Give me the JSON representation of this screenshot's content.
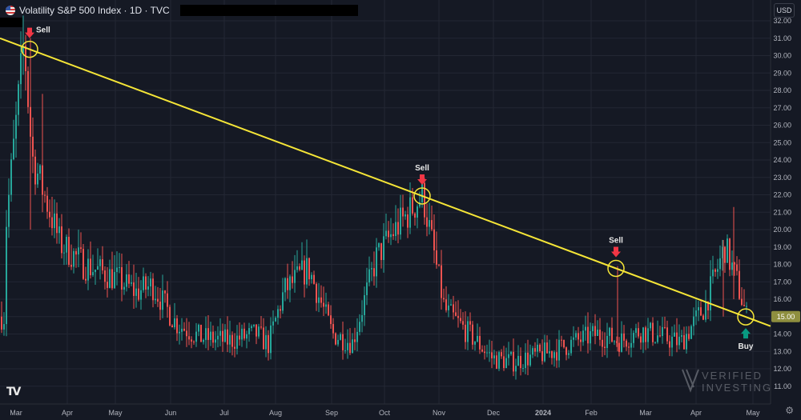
{
  "header": {
    "title": "Volatility S&P 500 Index · 1D · TVC",
    "currency": "USD"
  },
  "watermark": {
    "line1": "VERIFIED",
    "line2": "INVESTING"
  },
  "colors": {
    "background": "#151924",
    "grid": "#232733",
    "up": "#26a69a",
    "down": "#ef5350",
    "trendline": "#f5e537",
    "sell_arrow": "#f23645",
    "buy_arrow": "#089981"
  },
  "chart_data": {
    "type": "candlestick",
    "title": "Volatility S&P 500 Index · 1D · TVC",
    "ylim": [
      10.0,
      32.0
    ],
    "y_ticks": [
      "11.00",
      "12.00",
      "13.00",
      "14.00",
      "15.00",
      "16.00",
      "17.00",
      "18.00",
      "19.00",
      "20.00",
      "21.00",
      "22.00",
      "23.00",
      "24.00",
      "25.00",
      "26.00",
      "27.00",
      "28.00",
      "29.00",
      "30.00",
      "31.00",
      "32.00"
    ],
    "last_price": {
      "value": "15.00",
      "label": "15.00"
    },
    "x_labels": [
      "Mar",
      "Apr",
      "May",
      "Jun",
      "Jul",
      "Aug",
      "Sep",
      "Oct",
      "Nov",
      "Dec",
      "2024",
      "Feb",
      "Mar",
      "Apr",
      "May"
    ],
    "range": "Mar 2023 – May 2024",
    "grid": true,
    "anchors": [
      [
        "Mar",
        20.5
      ],
      [
        "Mar",
        30.8
      ],
      [
        "Mar",
        24.2
      ],
      [
        "Apr",
        19.2
      ],
      [
        "Apr",
        18.0
      ],
      [
        "May",
        17.2
      ],
      [
        "May",
        16.4
      ],
      [
        "May",
        16.8
      ],
      [
        "Jun",
        14.6
      ],
      [
        "Jun",
        13.8
      ],
      [
        "Jul",
        13.6
      ],
      [
        "Jul",
        14.0
      ],
      [
        "Aug",
        13.4
      ],
      [
        "Aug",
        16.5
      ],
      [
        "Aug",
        17.8
      ],
      [
        "Sep",
        14.0
      ],
      [
        "Sep",
        13.5
      ],
      [
        "Oct",
        18.4
      ],
      [
        "Oct",
        19.8
      ],
      [
        "Oct",
        22.0
      ],
      [
        "Nov",
        15.4
      ],
      [
        "Nov",
        13.8
      ],
      [
        "Dec",
        12.6
      ],
      [
        "Dec",
        12.4
      ],
      [
        "2024",
        13.0
      ],
      [
        "2024",
        13.5
      ],
      [
        "Feb",
        14.0
      ],
      [
        "Feb",
        13.6
      ],
      [
        "Mar",
        14.2
      ],
      [
        "Mar",
        13.5
      ],
      [
        "Apr",
        15.6
      ],
      [
        "Apr",
        19.0
      ],
      [
        "Apr",
        17.0
      ],
      [
        "May",
        15.0
      ]
    ],
    "trendline": {
      "start": [
        "Mar",
        30.8
      ],
      "end": [
        "May",
        14.6
      ]
    },
    "annotations": [
      {
        "label": "Sell",
        "price": 30.8,
        "month": "Mar"
      },
      {
        "label": "Sell",
        "price": 22.2,
        "month": "Oct"
      },
      {
        "label": "Sell",
        "price": 18.0,
        "month": "Feb"
      },
      {
        "label": "Buy",
        "price": 15.1,
        "month": "Apr"
      }
    ]
  }
}
